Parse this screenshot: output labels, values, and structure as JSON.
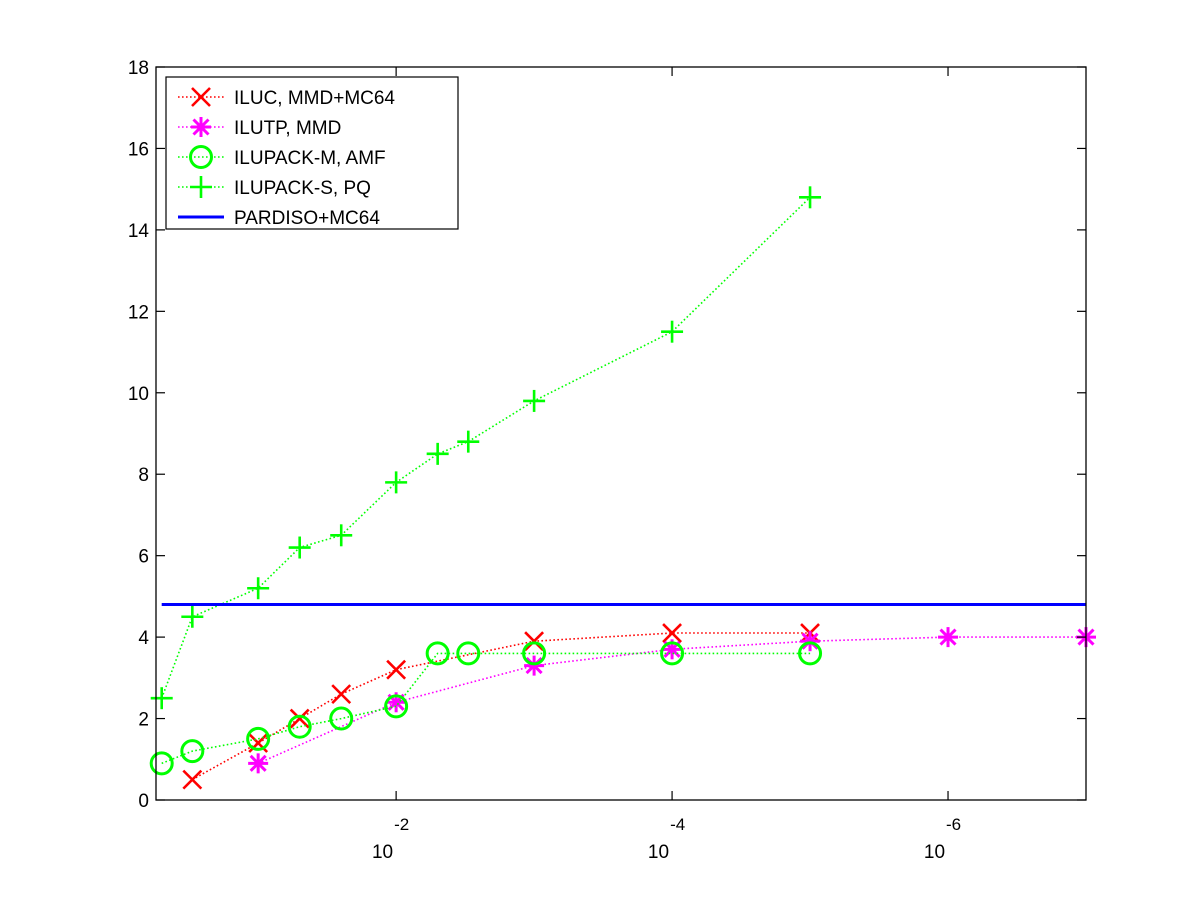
{
  "chart_data": {
    "type": "line",
    "title": "",
    "xlabel": "",
    "ylabel": "",
    "x_scale": "log",
    "x_reversed": true,
    "xlim": [
      0.55,
      1e-07
    ],
    "ylim": [
      0,
      18
    ],
    "grid": false,
    "legend_placement": "top-left",
    "x_ticks": [
      {
        "value": 0.01,
        "base": "10",
        "exponent": "-2"
      },
      {
        "value": 0.0001,
        "base": "10",
        "exponent": "-4"
      },
      {
        "value": 1e-06,
        "base": "10",
        "exponent": "-6"
      }
    ],
    "y_ticks": [
      "0",
      "2",
      "4",
      "6",
      "8",
      "10",
      "12",
      "14",
      "16",
      "18"
    ],
    "series": [
      {
        "name": "ILUC, MMD+MC64",
        "color": "#ff0000",
        "marker": "x",
        "line_style": "dotted",
        "x": [
          0.3,
          0.1,
          0.05,
          0.025,
          0.01,
          0.001,
          0.0001,
          1e-05
        ],
        "y": [
          0.5,
          1.4,
          2.0,
          2.6,
          3.2,
          3.9,
          4.1,
          4.1
        ]
      },
      {
        "name": "ILUTP, MMD",
        "color": "#ff00ff",
        "marker": "asterisk",
        "line_style": "dotted",
        "x": [
          0.1,
          0.01,
          0.001,
          0.0001,
          1e-05,
          1e-06,
          1e-07
        ],
        "y": [
          0.9,
          2.4,
          3.3,
          3.7,
          3.9,
          4.0,
          4.0
        ]
      },
      {
        "name": "ILUPACK-M, AMF",
        "color": "#00ff00",
        "marker": "circle",
        "line_style": "dotted",
        "x": [
          0.5,
          0.3,
          0.1,
          0.05,
          0.025,
          0.01,
          0.005,
          0.003,
          0.001,
          0.0001,
          1e-05
        ],
        "y": [
          0.9,
          1.2,
          1.5,
          1.8,
          2.0,
          2.3,
          3.6,
          3.6,
          3.6,
          3.6,
          3.6
        ]
      },
      {
        "name": "ILUPACK-S, PQ",
        "color": "#00ff00",
        "marker": "plus",
        "line_style": "dotted",
        "x": [
          0.5,
          0.3,
          0.1,
          0.05,
          0.025,
          0.01,
          0.005,
          0.003,
          0.001,
          0.0001,
          1e-05
        ],
        "y": [
          2.5,
          4.5,
          5.2,
          6.2,
          6.5,
          7.8,
          8.5,
          8.8,
          9.8,
          11.5,
          14.8
        ]
      },
      {
        "name": "PARDISO+MC64",
        "color": "#0000ff",
        "marker": "none",
        "line_style": "solid",
        "x": [
          0.5,
          1e-07
        ],
        "y": [
          4.8,
          4.8
        ]
      }
    ]
  }
}
